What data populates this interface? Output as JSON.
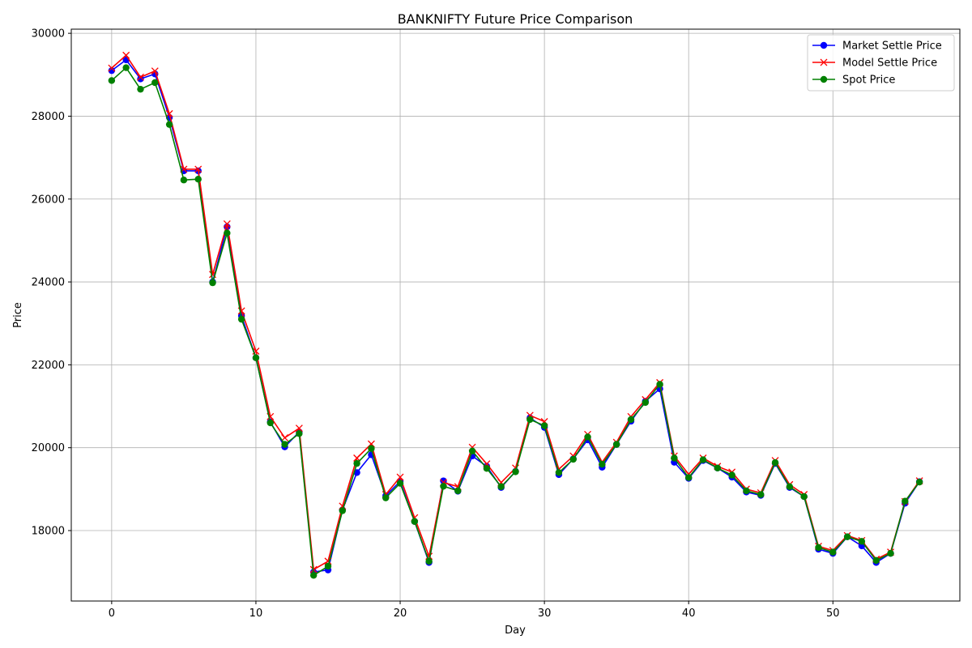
{
  "chart_data": {
    "type": "line",
    "title": "BANKNIFTY Future Price Comparison",
    "xlabel": "Day",
    "ylabel": "Price",
    "xlim": [
      -2.8,
      58.8
    ],
    "ylim": [
      16300,
      30100
    ],
    "xticks": [
      0,
      10,
      20,
      30,
      40,
      50
    ],
    "yticks": [
      18000,
      20000,
      22000,
      24000,
      26000,
      28000,
      30000
    ],
    "grid": true,
    "legend_position": "top-right",
    "x": [
      0,
      1,
      2,
      3,
      4,
      5,
      6,
      7,
      8,
      9,
      10,
      11,
      12,
      13,
      14,
      15,
      16,
      17,
      18,
      19,
      20,
      21,
      22,
      23,
      24,
      25,
      26,
      27,
      28,
      29,
      30,
      31,
      32,
      33,
      34,
      35,
      36,
      37,
      38,
      39,
      40,
      41,
      42,
      43,
      44,
      45,
      46,
      47,
      48,
      49,
      50,
      51,
      52,
      53,
      54,
      55,
      56
    ],
    "series": [
      {
        "name": "Market Settle Price",
        "color": "#0000ff",
        "marker": "circle",
        "values": [
          29100,
          29360,
          28900,
          29020,
          27970,
          26680,
          26680,
          24000,
          25330,
          23180,
          22170,
          20620,
          20020,
          20380,
          17000,
          17050,
          18500,
          19400,
          19830,
          18840,
          19190,
          18220,
          17230,
          19200,
          18950,
          19800,
          19550,
          19040,
          19430,
          20720,
          20490,
          19350,
          19730,
          20190,
          19530,
          20080,
          20640,
          21120,
          21420,
          19650,
          19260,
          19690,
          19510,
          19290,
          18930,
          18850,
          19620,
          19040,
          18820,
          17550,
          17450,
          17850,
          17630,
          17230,
          17450,
          18660,
          19180
        ]
      },
      {
        "name": "Model Settle Price",
        "color": "#ff0000",
        "marker": "x",
        "values": [
          29160,
          29470,
          28940,
          29090,
          28060,
          26720,
          26720,
          24180,
          25400,
          23300,
          22330,
          20750,
          20240,
          20470,
          17060,
          17260,
          18590,
          19750,
          20090,
          18870,
          19290,
          18310,
          17380,
          19160,
          19060,
          20010,
          19610,
          19160,
          19510,
          20780,
          20630,
          19480,
          19800,
          20320,
          19650,
          20130,
          20750,
          21160,
          21570,
          19800,
          19360,
          19750,
          19550,
          19410,
          19000,
          18910,
          19690,
          19110,
          18870,
          17620,
          17520,
          17880,
          17760,
          17310,
          17480,
          18700,
          19200
        ]
      },
      {
        "name": "Spot Price",
        "color": "#008000",
        "marker": "circle",
        "values": [
          28860,
          29170,
          28650,
          28810,
          27800,
          26460,
          26480,
          23980,
          25180,
          23100,
          22170,
          20600,
          20080,
          20340,
          16920,
          17140,
          18480,
          19620,
          19980,
          18790,
          19140,
          18220,
          17260,
          19070,
          18960,
          19920,
          19500,
          19060,
          19420,
          20680,
          20530,
          19400,
          19720,
          20260,
          19600,
          20080,
          20680,
          21090,
          21530,
          19750,
          19280,
          19710,
          19510,
          19340,
          18960,
          18870,
          19640,
          19060,
          18820,
          17590,
          17480,
          17850,
          17740,
          17280,
          17450,
          18710,
          19170
        ]
      }
    ]
  }
}
